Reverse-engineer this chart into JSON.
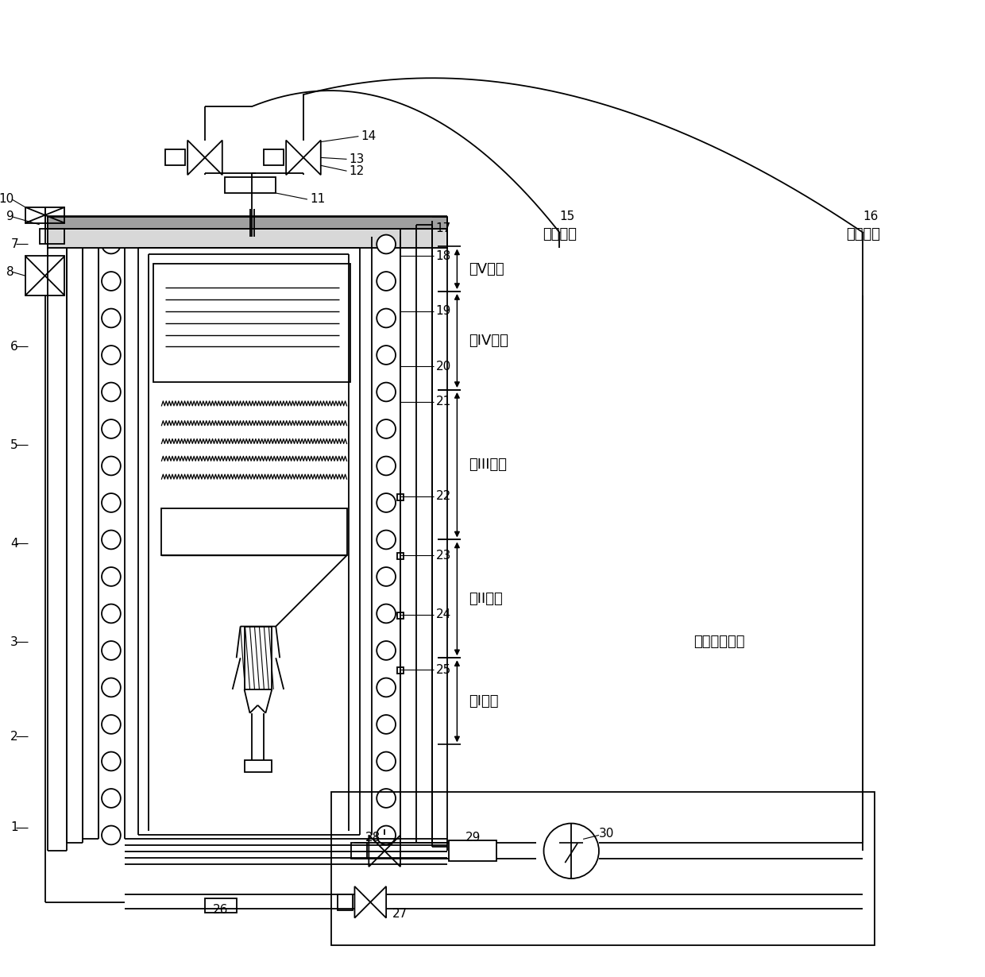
{
  "bg_color": "#ffffff",
  "line_color": "#000000",
  "fig_width": 12.4,
  "fig_height": 12.3,
  "lw": 1.3,
  "zones": [
    [
      308,
      365,
      "第V温区"
    ],
    [
      365,
      490,
      "第IV温区"
    ],
    [
      490,
      680,
      "第III温区"
    ],
    [
      680,
      830,
      "第II温区"
    ],
    [
      830,
      940,
      "第I温区"
    ]
  ],
  "label15": "特气管道",
  "label16": "氯气管道",
  "label_exhaust": "尾气回收管道"
}
